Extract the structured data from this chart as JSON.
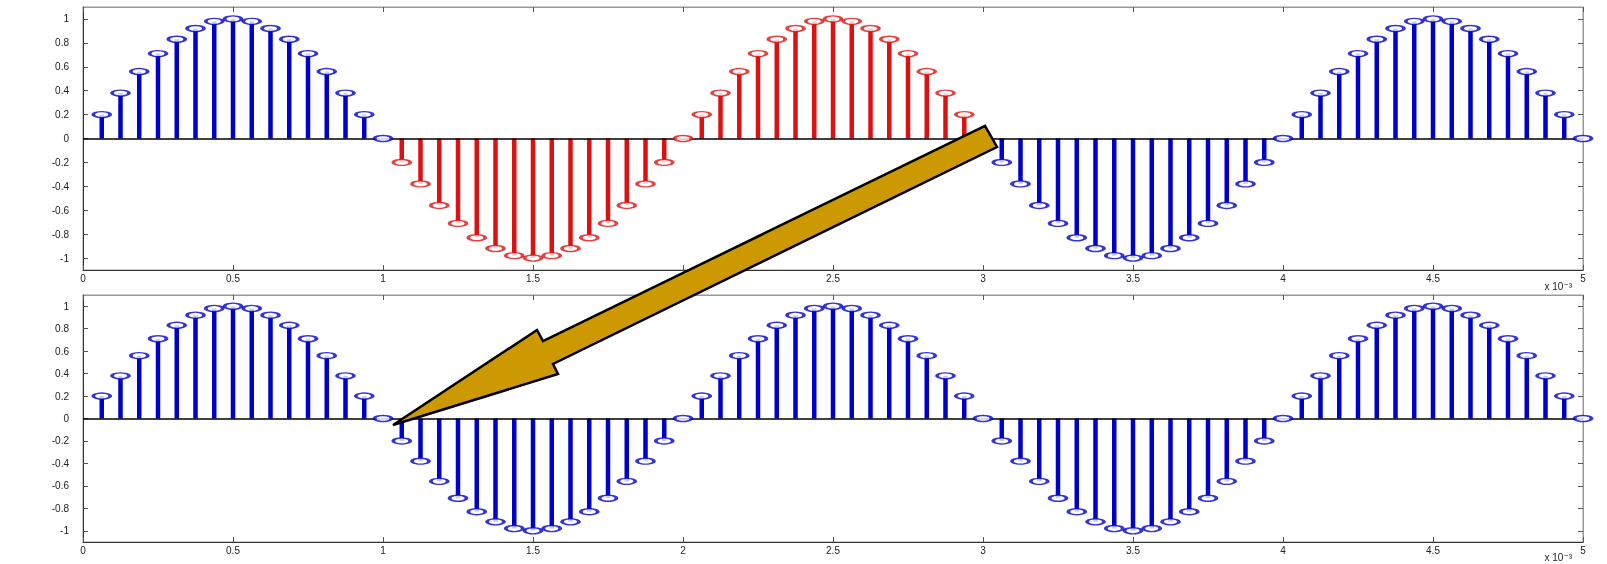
{
  "chart_data": [
    {
      "type": "lollipop",
      "xlabel": "x 10⁻³",
      "xlim": [
        0,
        5
      ],
      "xticks": [
        0,
        0.5,
        1,
        1.5,
        {
          "value": 2,
          "label": null
        },
        2.5,
        3,
        3.5,
        4,
        4.5,
        5
      ],
      "ylim": [
        -1.1,
        1.1
      ],
      "yticks": [
        -1,
        -0.8,
        -0.6,
        -0.4,
        -0.2,
        0,
        0.2,
        0.4,
        0.6,
        0.8,
        1
      ],
      "marker": "circle",
      "ref_lines": [
        {
          "axis": "y",
          "value": 0,
          "color": "#000000"
        }
      ],
      "series": [
        {
          "color": "#0000cc",
          "x": [
            0.0625,
            0.125,
            0.1875,
            0.25,
            0.3125,
            0.375,
            0.4375,
            0.5,
            0.5625,
            0.625,
            0.6875,
            0.75,
            0.8125,
            0.875,
            0.9375,
            1,
            3.0625,
            3.125,
            3.1875,
            3.25,
            3.3125,
            3.375,
            3.4375,
            3.5,
            3.5625,
            3.625,
            3.6875,
            3.75,
            3.8125,
            3.875,
            3.9375,
            4,
            4.0625,
            4.125,
            4.1875,
            4.25,
            4.3125,
            4.375,
            4.4375,
            4.5,
            4.5625,
            4.625,
            4.6875,
            4.75,
            4.8125,
            4.875,
            4.9375,
            5
          ],
          "values": [
            0.2,
            0.38,
            0.56,
            0.71,
            0.83,
            0.92,
            0.98,
            1,
            0.98,
            0.92,
            0.83,
            0.71,
            0.56,
            0.38,
            0.2,
            0,
            -0.2,
            -0.38,
            -0.56,
            -0.71,
            -0.83,
            -0.92,
            -0.98,
            -1,
            -0.98,
            -0.92,
            -0.83,
            -0.71,
            -0.56,
            -0.38,
            -0.2,
            0,
            0.2,
            0.38,
            0.56,
            0.71,
            0.83,
            0.92,
            0.98,
            1,
            0.98,
            0.92,
            0.83,
            0.71,
            0.56,
            0.38,
            0.2,
            0
          ]
        },
        {
          "color": "#dd1111",
          "x": [
            1.0625,
            1.125,
            1.1875,
            1.25,
            1.3125,
            1.375,
            1.4375,
            1.5,
            1.5625,
            1.625,
            1.6875,
            1.75,
            1.8125,
            1.875,
            1.9375,
            2,
            2.0625,
            2.125,
            2.1875,
            2.25,
            2.3125,
            2.375,
            2.4375,
            2.5,
            2.5625,
            2.625,
            2.6875,
            2.75,
            2.8125,
            2.875,
            2.9375
          ],
          "values": [
            -0.2,
            -0.38,
            -0.56,
            -0.71,
            -0.83,
            -0.92,
            -0.98,
            -1,
            -0.98,
            -0.92,
            -0.83,
            -0.71,
            -0.56,
            -0.38,
            -0.2,
            0,
            0.2,
            0.38,
            0.56,
            0.71,
            0.83,
            0.92,
            0.98,
            1,
            0.98,
            0.92,
            0.83,
            0.71,
            0.56,
            0.38,
            0.2
          ]
        }
      ]
    },
    {
      "type": "lollipop",
      "xlabel": "x 10⁻³",
      "xlim": [
        0,
        5
      ],
      "xticks": [
        0,
        0.5,
        1,
        1.5,
        2,
        2.5,
        3,
        3.5,
        4,
        4.5,
        5
      ],
      "ylim": [
        -1.1,
        1.1
      ],
      "yticks": [
        -1,
        -0.8,
        -0.6,
        -0.4,
        -0.2,
        0,
        0.2,
        0.4,
        0.6,
        0.8,
        1
      ],
      "marker": "circle",
      "ref_lines": [
        {
          "axis": "y",
          "value": 0,
          "color": "#000000"
        }
      ],
      "x": [
        0.0625,
        0.125,
        0.1875,
        0.25,
        0.3125,
        0.375,
        0.4375,
        0.5,
        0.5625,
        0.625,
        0.6875,
        0.75,
        0.8125,
        0.875,
        0.9375,
        1,
        1.0625,
        1.125,
        1.1875,
        1.25,
        1.3125,
        1.375,
        1.4375,
        1.5,
        1.5625,
        1.625,
        1.6875,
        1.75,
        1.8125,
        1.875,
        1.9375,
        2,
        2.0625,
        2.125,
        2.1875,
        2.25,
        2.3125,
        2.375,
        2.4375,
        2.5,
        2.5625,
        2.625,
        2.6875,
        2.75,
        2.8125,
        2.875,
        2.9375,
        3,
        3.0625,
        3.125,
        3.1875,
        3.25,
        3.3125,
        3.375,
        3.4375,
        3.5,
        3.5625,
        3.625,
        3.6875,
        3.75,
        3.8125,
        3.875,
        3.9375,
        4,
        4.0625,
        4.125,
        4.1875,
        4.25,
        4.3125,
        4.375,
        4.4375,
        4.5,
        4.5625,
        4.625,
        4.6875,
        4.75,
        4.8125,
        4.875,
        4.9375,
        5
      ],
      "series": [
        {
          "color": "#0000cc",
          "values": [
            0.2,
            0.38,
            0.56,
            0.71,
            0.83,
            0.92,
            0.98,
            1,
            0.98,
            0.92,
            0.83,
            0.71,
            0.56,
            0.38,
            0.2,
            0,
            -0.2,
            -0.38,
            -0.56,
            -0.71,
            -0.83,
            -0.92,
            -0.98,
            -1,
            -0.98,
            -0.92,
            -0.83,
            -0.71,
            -0.56,
            -0.38,
            -0.2,
            0,
            0.2,
            0.38,
            0.56,
            0.71,
            0.83,
            0.92,
            0.98,
            1,
            0.98,
            0.92,
            0.83,
            0.71,
            0.56,
            0.38,
            0.2,
            0,
            -0.2,
            -0.38,
            -0.56,
            -0.71,
            -0.83,
            -0.92,
            -0.98,
            -1,
            -0.98,
            -0.92,
            -0.83,
            -0.71,
            -0.56,
            -0.38,
            -0.2,
            0,
            0.2,
            0.38,
            0.56,
            0.71,
            0.83,
            0.92,
            0.98,
            1,
            0.98,
            0.92,
            0.83,
            0.71,
            0.56,
            0.38,
            0.2,
            0
          ]
        }
      ]
    }
  ]
}
